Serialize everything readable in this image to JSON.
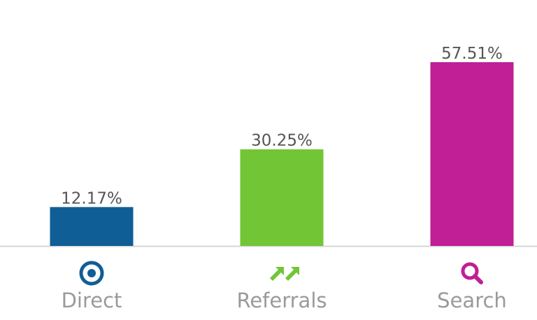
{
  "chart_data": {
    "type": "bar",
    "categories": [
      "Direct",
      "Referrals",
      "Search"
    ],
    "values": [
      12.17,
      30.25,
      57.51
    ],
    "value_labels": [
      "12.17%",
      "30.25%",
      "57.51%"
    ],
    "colors": [
      "#0f5e96",
      "#72c534",
      "#c01f95"
    ]
  }
}
